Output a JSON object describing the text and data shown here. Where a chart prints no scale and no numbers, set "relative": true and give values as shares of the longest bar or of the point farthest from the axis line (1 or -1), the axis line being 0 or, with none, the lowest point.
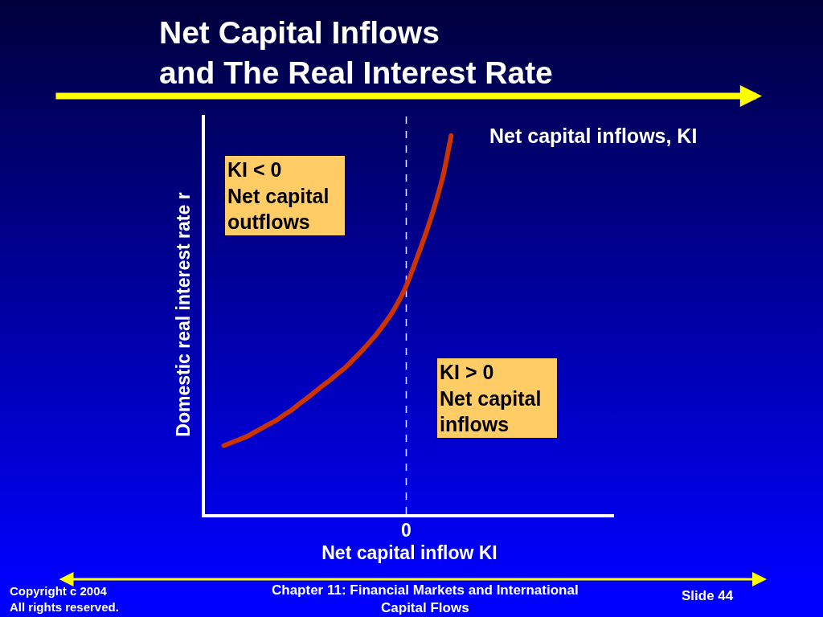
{
  "chart_data": {
    "type": "line",
    "title": "Net Capital Inflows\nand The Real Interest Rate",
    "xlabel": "Net capital inflow KI",
    "ylabel": "Domestic real interest rate r",
    "relative": true,
    "categories": [
      null,
      null,
      null,
      null,
      null,
      null,
      null,
      null,
      null,
      null,
      null,
      null,
      null,
      null,
      null,
      null,
      null,
      null,
      null,
      null,
      null,
      null,
      null,
      null,
      null,
      null,
      null,
      null,
      null,
      null,
      null,
      null,
      null,
      null,
      null,
      null,
      null,
      null,
      null,
      null,
      null,
      null,
      null,
      null,
      null,
      null,
      null,
      null,
      null,
      null,
      null,
      null,
      null,
      null
    ],
    "series": [
      {
        "name": "Net capital inflows, KI",
        "color": "#cc3300",
        "values": [
          null,
          null,
          0.181,
          0.189,
          0.197,
          0.205,
          0.216,
          0.227,
          0.238,
          0.249,
          0.263,
          0.276,
          0.292,
          0.307,
          0.323,
          0.339,
          0.354,
          0.371,
          0.387,
          0.407,
          0.427,
          0.449,
          0.472,
          0.498,
          0.526,
          0.56,
          0.6,
          0.651,
          0.705,
          0.762,
          0.826,
          0.9,
          1.0,
          null,
          null,
          null,
          null,
          null,
          null,
          null,
          null,
          null,
          null,
          null,
          null,
          null,
          null,
          null,
          null,
          null,
          null,
          null,
          null,
          null
        ]
      }
    ],
    "legend": false,
    "marker": "none",
    "line_style": "solid",
    "annotations": [
      "KI < 0\nNet capital\noutflows",
      "KI > 0\nNet capital\ninflows",
      "0",
      "Copyright c 2004\nAll rights reserved.",
      "Chapter 11: Financial Markets and International\nCapital Flows",
      "Slide 44"
    ]
  }
}
